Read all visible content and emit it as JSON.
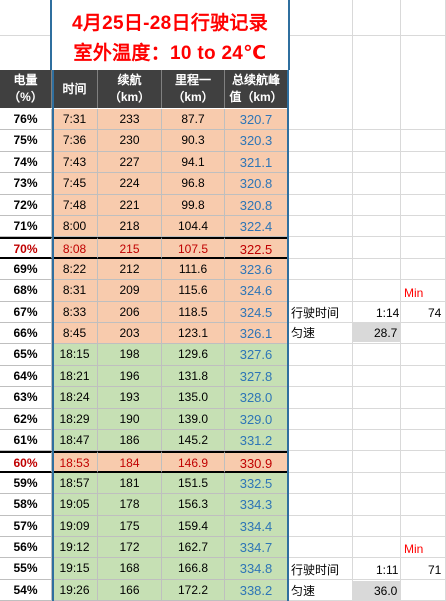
{
  "title": {
    "line1": "4月25日-28日行驶记录",
    "line2": "室外温度：10 to 24℃"
  },
  "headers": {
    "battery": "电量\n（%）",
    "time": "时间",
    "range": "续航\n（km）",
    "mileage": "里程一\n（km）",
    "total": "总续航峰\n值（km）"
  },
  "rows": [
    {
      "battery": "76%",
      "time": "7:31",
      "range": "233",
      "mileage": "87.7",
      "total": "320.7",
      "style": "orange"
    },
    {
      "battery": "75%",
      "time": "7:36",
      "range": "230",
      "mileage": "90.3",
      "total": "320.3",
      "style": "orange"
    },
    {
      "battery": "74%",
      "time": "7:43",
      "range": "227",
      "mileage": "94.1",
      "total": "321.1",
      "style": "orange"
    },
    {
      "battery": "73%",
      "time": "7:45",
      "range": "224",
      "mileage": "96.8",
      "total": "320.8",
      "style": "orange"
    },
    {
      "battery": "72%",
      "time": "7:48",
      "range": "221",
      "mileage": "99.8",
      "total": "320.8",
      "style": "orange"
    },
    {
      "battery": "71%",
      "time": "8:00",
      "range": "218",
      "mileage": "104.4",
      "total": "322.4",
      "style": "orange"
    },
    {
      "battery": "70%",
      "time": "8:08",
      "range": "215",
      "mileage": "107.5",
      "total": "322.5",
      "style": "orange",
      "highlight": true
    },
    {
      "battery": "69%",
      "time": "8:22",
      "range": "212",
      "mileage": "111.6",
      "total": "323.6",
      "style": "orange"
    },
    {
      "battery": "68%",
      "time": "8:31",
      "range": "209",
      "mileage": "115.6",
      "total": "324.6",
      "style": "orange"
    },
    {
      "battery": "67%",
      "time": "8:33",
      "range": "206",
      "mileage": "118.5",
      "total": "324.5",
      "style": "orange"
    },
    {
      "battery": "66%",
      "time": "8:45",
      "range": "203",
      "mileage": "123.1",
      "total": "326.1",
      "style": "orange"
    },
    {
      "battery": "65%",
      "time": "18:15",
      "range": "198",
      "mileage": "129.6",
      "total": "327.6",
      "style": "green"
    },
    {
      "battery": "64%",
      "time": "18:21",
      "range": "196",
      "mileage": "131.8",
      "total": "327.8",
      "style": "green"
    },
    {
      "battery": "63%",
      "time": "18:24",
      "range": "193",
      "mileage": "135.0",
      "total": "328.0",
      "style": "green"
    },
    {
      "battery": "62%",
      "time": "18:29",
      "range": "190",
      "mileage": "139.0",
      "total": "329.0",
      "style": "green"
    },
    {
      "battery": "61%",
      "time": "18:47",
      "range": "186",
      "mileage": "145.2",
      "total": "331.2",
      "style": "green"
    },
    {
      "battery": "60%",
      "time": "18:53",
      "range": "184",
      "mileage": "146.9",
      "total": "330.9",
      "style": "orange",
      "highlight": true
    },
    {
      "battery": "59%",
      "time": "18:57",
      "range": "181",
      "mileage": "151.5",
      "total": "332.5",
      "style": "green"
    },
    {
      "battery": "58%",
      "time": "19:05",
      "range": "178",
      "mileage": "156.3",
      "total": "334.3",
      "style": "green"
    },
    {
      "battery": "57%",
      "time": "19:09",
      "range": "175",
      "mileage": "159.4",
      "total": "334.4",
      "style": "green"
    },
    {
      "battery": "56%",
      "time": "19:12",
      "range": "172",
      "mileage": "162.7",
      "total": "334.7",
      "style": "green"
    },
    {
      "battery": "55%",
      "time": "19:15",
      "range": "168",
      "mileage": "166.8",
      "total": "334.8",
      "style": "green"
    },
    {
      "battery": "54%",
      "time": "19:26",
      "range": "166",
      "mileage": "172.2",
      "total": "338.2",
      "style": "green"
    }
  ],
  "side_panel_1": {
    "min_label": "Min",
    "drive_time_label": "行驶时间",
    "drive_time_value": "1:14",
    "drive_time_minutes": "74",
    "avg_speed_label": "匀速",
    "avg_speed_value": "28.7"
  },
  "side_panel_2": {
    "min_label": "Min",
    "drive_time_label": "行驶时间",
    "drive_time_value": "1:11",
    "drive_time_minutes": "71",
    "avg_speed_label": "匀速",
    "avg_speed_value": "36.0"
  },
  "colors": {
    "title_red": "#ff0000",
    "header_bg": "#404040",
    "orange_fill": "#f8cbad",
    "green_fill": "#c6e0b4",
    "total_blue": "#2e75b6",
    "highlight_red": "#c00000"
  }
}
